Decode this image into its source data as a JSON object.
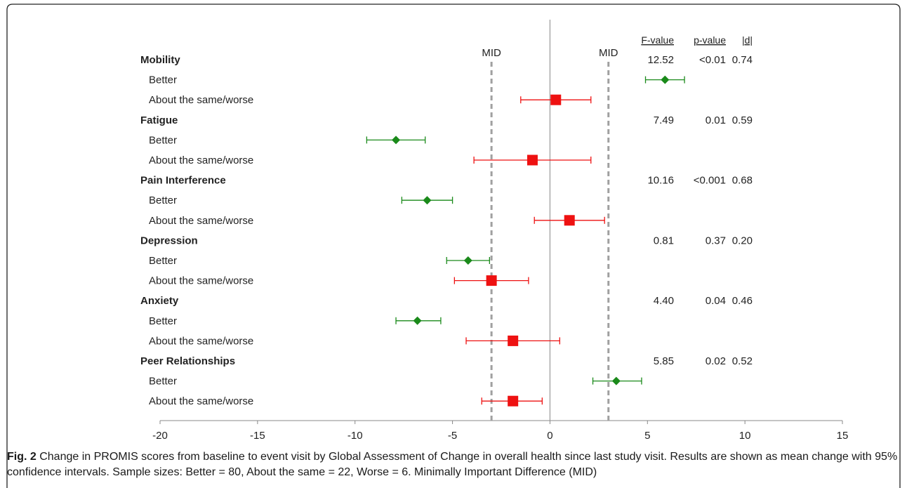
{
  "chart_data": {
    "type": "forest",
    "title": "",
    "xlabel": "",
    "ylabel": "",
    "xlim": [
      -20,
      15
    ],
    "x_ticks": [
      -20,
      -15,
      -10,
      -5,
      0,
      5,
      10,
      15
    ],
    "reference_lines": [
      {
        "label": "MID",
        "x": -3
      },
      {
        "label": "MID",
        "x": 3
      }
    ],
    "columns": [
      "F-value",
      "p-value",
      "|d|"
    ],
    "series": [
      {
        "name": "Better",
        "color": "#1a8a1a",
        "marker": "diamond"
      },
      {
        "name": "About the same/worse",
        "color": "#ee1111",
        "marker": "square"
      }
    ],
    "groups": [
      {
        "name": "Mobility",
        "f_value": "12.52",
        "p_value": "<0.01",
        "d": "0.74",
        "rows": [
          {
            "label": "Better",
            "series": "Better",
            "mean": 5.9,
            "lower": 4.9,
            "upper": 6.9
          },
          {
            "label": "About the same/worse",
            "series": "About the same/worse",
            "mean": 0.3,
            "lower": -1.5,
            "upper": 2.1
          }
        ]
      },
      {
        "name": "Fatigue",
        "f_value": "7.49",
        "p_value": "0.01",
        "d": "0.59",
        "rows": [
          {
            "label": "Better",
            "series": "Better",
            "mean": -7.9,
            "lower": -9.4,
            "upper": -6.4
          },
          {
            "label": "About the same/worse",
            "series": "About the same/worse",
            "mean": -0.9,
            "lower": -3.9,
            "upper": 2.1
          }
        ]
      },
      {
        "name": "Pain Interference",
        "f_value": "10.16",
        "p_value": "<0.001",
        "d": "0.68",
        "rows": [
          {
            "label": "Better",
            "series": "Better",
            "mean": -6.3,
            "lower": -7.6,
            "upper": -5.0
          },
          {
            "label": "About the same/worse",
            "series": "About the same/worse",
            "mean": 1.0,
            "lower": -0.8,
            "upper": 2.8
          }
        ]
      },
      {
        "name": "Depression",
        "f_value": "0.81",
        "p_value": "0.37",
        "d": "0.20",
        "rows": [
          {
            "label": "Better",
            "series": "Better",
            "mean": -4.2,
            "lower": -5.3,
            "upper": -3.1
          },
          {
            "label": "About the same/worse",
            "series": "About the same/worse",
            "mean": -3.0,
            "lower": -4.9,
            "upper": -1.1
          }
        ]
      },
      {
        "name": "Anxiety",
        "f_value": "4.40",
        "p_value": "0.04",
        "d": "0.46",
        "rows": [
          {
            "label": "Better",
            "series": "Better",
            "mean": -6.8,
            "lower": -7.9,
            "upper": -5.6
          },
          {
            "label": "About the same/worse",
            "series": "About the same/worse",
            "mean": -1.9,
            "lower": -4.3,
            "upper": 0.5
          }
        ]
      },
      {
        "name": "Peer Relationships",
        "f_value": "5.85",
        "p_value": "0.02",
        "d": "0.52",
        "rows": [
          {
            "label": "Better",
            "series": "Better",
            "mean": 3.4,
            "lower": 2.2,
            "upper": 4.7
          },
          {
            "label": "About the same/worse",
            "series": "About the same/worse",
            "mean": -1.9,
            "lower": -3.5,
            "upper": -0.4
          }
        ]
      }
    ],
    "grid": false,
    "legend": "none"
  },
  "caption": {
    "label": "Fig. 2",
    "text": " Change in PROMIS scores from baseline to event visit by Global Assessment of Change in overall health since last study visit. Results are shown as mean change with 95% confidence intervals. Sample sizes: Better = 80, About the same = 22, Worse = 6. Minimally Important Difference (MID)"
  }
}
